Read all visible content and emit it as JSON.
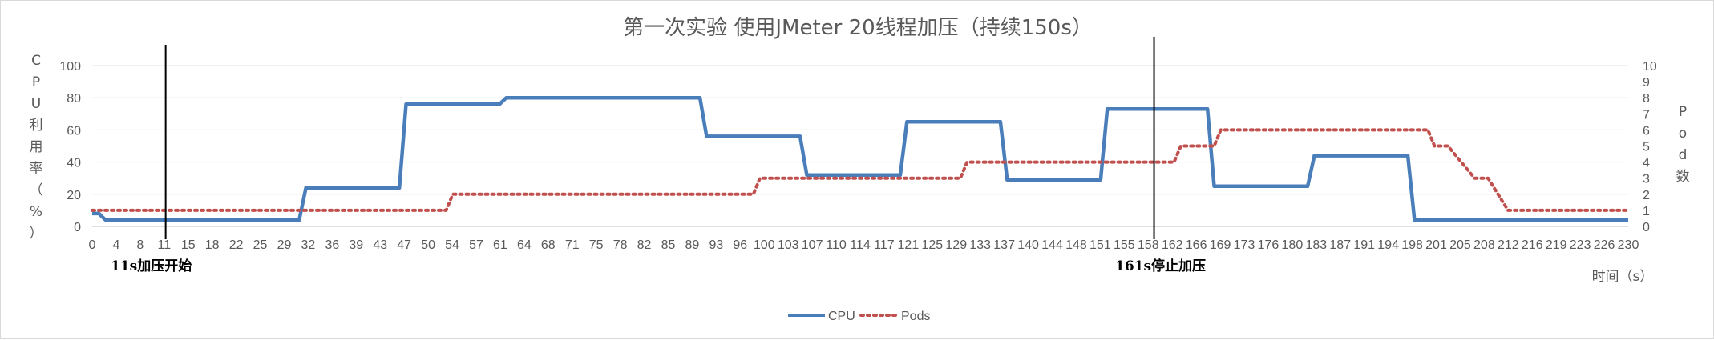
{
  "chart_data": {
    "type": "line",
    "title": "第一次实验 使用JMeter 20线程加压（持续150s）",
    "ylabel": "CPU利用率（%）",
    "y2label": "Pod数",
    "xlabel": "时间（s）",
    "ylim": [
      0,
      100
    ],
    "y2lim": [
      0,
      10
    ],
    "yticks": [
      0,
      20,
      40,
      60,
      80,
      100
    ],
    "y2ticks": [
      0,
      1,
      2,
      3,
      4,
      5,
      6,
      7,
      8,
      9,
      10
    ],
    "grid": true,
    "legend_position": "bottom",
    "x_range": [
      0,
      230
    ],
    "x_tick_labels": [
      0,
      4,
      8,
      11,
      15,
      18,
      22,
      25,
      29,
      32,
      36,
      39,
      43,
      47,
      50,
      54,
      57,
      61,
      64,
      68,
      71,
      75,
      78,
      82,
      85,
      89,
      93,
      96,
      100,
      103,
      107,
      110,
      114,
      117,
      121,
      125,
      129,
      133,
      137,
      140,
      144,
      148,
      151,
      155,
      158,
      162,
      166,
      169,
      173,
      176,
      180,
      183,
      187,
      191,
      194,
      198,
      201,
      205,
      208,
      212,
      216,
      219,
      223,
      226,
      230
    ],
    "series": [
      {
        "name": "CPU",
        "color": "#4a7ebb",
        "axis": "left",
        "points": [
          [
            0,
            8
          ],
          [
            1,
            8
          ],
          [
            2,
            4
          ],
          [
            31,
            4
          ],
          [
            32,
            24
          ],
          [
            46,
            24
          ],
          [
            47,
            76
          ],
          [
            61,
            76
          ],
          [
            62,
            80
          ],
          [
            91,
            80
          ],
          [
            92,
            56
          ],
          [
            106,
            56
          ],
          [
            107,
            32
          ],
          [
            121,
            32
          ],
          [
            122,
            65
          ],
          [
            136,
            65
          ],
          [
            137,
            29
          ],
          [
            151,
            29
          ],
          [
            152,
            73
          ],
          [
            167,
            73
          ],
          [
            168,
            25
          ],
          [
            182,
            25
          ],
          [
            183,
            44
          ],
          [
            197,
            44
          ],
          [
            198,
            4
          ],
          [
            230,
            4
          ]
        ]
      },
      {
        "name": "Pods",
        "color": "#c0504d",
        "axis": "right",
        "points": [
          [
            0,
            1
          ],
          [
            53,
            1
          ],
          [
            54,
            2
          ],
          [
            99,
            2
          ],
          [
            100,
            3
          ],
          [
            130,
            3
          ],
          [
            131,
            4
          ],
          [
            162,
            4
          ],
          [
            163,
            5
          ],
          [
            168,
            5
          ],
          [
            169,
            6
          ],
          [
            200,
            6
          ],
          [
            201,
            5
          ],
          [
            203,
            5
          ],
          [
            205,
            4
          ],
          [
            207,
            3
          ],
          [
            209,
            3
          ],
          [
            212,
            1
          ],
          [
            230,
            1
          ]
        ]
      }
    ],
    "annotations": [
      {
        "text": "11s加压开始",
        "x": 11
      },
      {
        "text": "161s停止加压",
        "x": 159
      }
    ]
  }
}
